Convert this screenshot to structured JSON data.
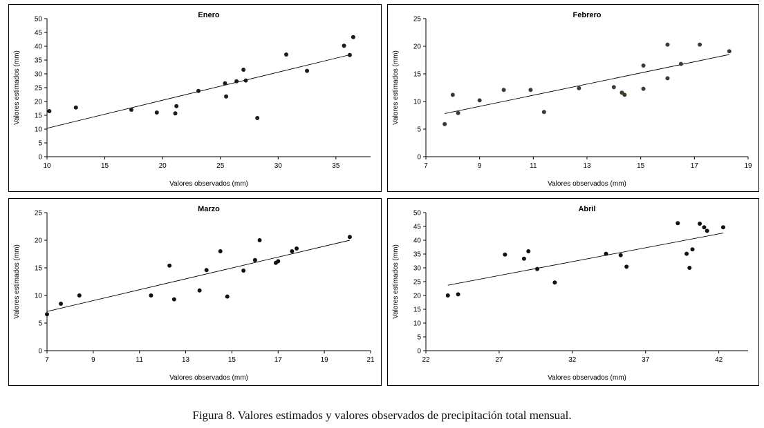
{
  "caption": "Figura  8. Valores estimados y valores observados de precipitación total mensual.",
  "chart_data": [
    {
      "type": "scatter",
      "title": "Enero",
      "xlabel": "Valores observados (mm)",
      "ylabel": "Valores estimados (mm)",
      "xlim": [
        10,
        38
      ],
      "ylim": [
        0,
        50
      ],
      "xticks": [
        10,
        15,
        20,
        25,
        30,
        35
      ],
      "yticks": [
        0,
        5,
        10,
        15,
        20,
        25,
        30,
        35,
        40,
        45,
        50
      ],
      "x": [
        10.2,
        12.5,
        17.3,
        19.5,
        21.1,
        21.2,
        23.1,
        25.4,
        25.5,
        26.4,
        27.0,
        27.2,
        28.2,
        30.7,
        32.5,
        35.7,
        36.2,
        36.5
      ],
      "y": [
        16.5,
        17.8,
        17.0,
        16.0,
        15.7,
        18.3,
        23.8,
        26.6,
        21.8,
        27.3,
        31.5,
        27.6,
        14.0,
        37.0,
        31.1,
        40.2,
        36.8,
        43.3
      ],
      "trendline": [
        [
          10.0,
          10.3
        ],
        [
          36.3,
          37.0
        ]
      ]
    },
    {
      "type": "scatter",
      "title": "Febrero",
      "xlabel": "Valores observados (mm)",
      "ylabel": "Valores estimados (mm)",
      "xlim": [
        7,
        19
      ],
      "ylim": [
        0,
        25
      ],
      "xticks": [
        7,
        9,
        11,
        13,
        15,
        17,
        19
      ],
      "yticks": [
        0,
        5,
        10,
        15,
        20,
        25
      ],
      "x": [
        7.7,
        8.0,
        8.2,
        9.0,
        9.9,
        10.9,
        11.4,
        12.7,
        14.0,
        14.3,
        14.4,
        15.1,
        15.1,
        16.0,
        16.0,
        16.5,
        17.2,
        18.3
      ],
      "y": [
        5.9,
        11.2,
        7.9,
        10.2,
        12.1,
        12.1,
        8.1,
        12.4,
        12.6,
        11.6,
        11.2,
        12.3,
        16.5,
        14.2,
        20.3,
        16.8,
        20.3,
        19.1
      ],
      "trendline": [
        [
          7.7,
          7.8
        ],
        [
          18.3,
          18.5
        ]
      ]
    },
    {
      "type": "scatter",
      "title": "Marzo",
      "xlabel": "Valores observados (mm)",
      "ylabel": "Valores estimados (mm)",
      "xlim": [
        7,
        21
      ],
      "ylim": [
        0,
        25
      ],
      "xticks": [
        7,
        9,
        11,
        13,
        15,
        17,
        19,
        21
      ],
      "yticks": [
        0,
        5,
        10,
        15,
        20,
        25
      ],
      "x": [
        7.0,
        7.6,
        8.4,
        11.5,
        12.3,
        12.5,
        13.6,
        13.9,
        14.5,
        14.8,
        15.5,
        16.0,
        16.2,
        16.9,
        17.0,
        17.6,
        17.8,
        20.1
      ],
      "y": [
        6.6,
        8.5,
        10.0,
        10.0,
        15.4,
        9.3,
        10.9,
        14.6,
        18.0,
        9.8,
        14.5,
        16.4,
        20.0,
        15.9,
        16.2,
        18.0,
        18.5,
        20.6
      ],
      "trendline": [
        [
          7.0,
          7.1
        ],
        [
          20.1,
          20.0
        ]
      ]
    },
    {
      "type": "scatter",
      "title": "Abril",
      "xlabel": "Valores observados (mm)",
      "ylabel": "Valores estimados (mm)",
      "xlim": [
        22,
        44
      ],
      "ylim": [
        0,
        50
      ],
      "xticks": [
        22,
        27,
        32,
        37,
        42
      ],
      "yticks": [
        0,
        5,
        10,
        15,
        20,
        25,
        30,
        35,
        40,
        45,
        50
      ],
      "x": [
        23.5,
        24.2,
        27.4,
        28.7,
        29.0,
        29.6,
        30.8,
        34.3,
        35.3,
        35.7,
        39.2,
        39.8,
        40.0,
        40.2,
        40.7,
        41.0,
        41.2,
        42.3
      ],
      "y": [
        20.0,
        20.4,
        34.8,
        33.3,
        36.0,
        29.6,
        24.7,
        35.1,
        34.6,
        30.4,
        46.2,
        35.1,
        30.0,
        36.7,
        46.0,
        44.7,
        43.4,
        44.7
      ],
      "trendline": [
        [
          23.5,
          23.7
        ],
        [
          42.3,
          42.6
        ]
      ]
    }
  ]
}
